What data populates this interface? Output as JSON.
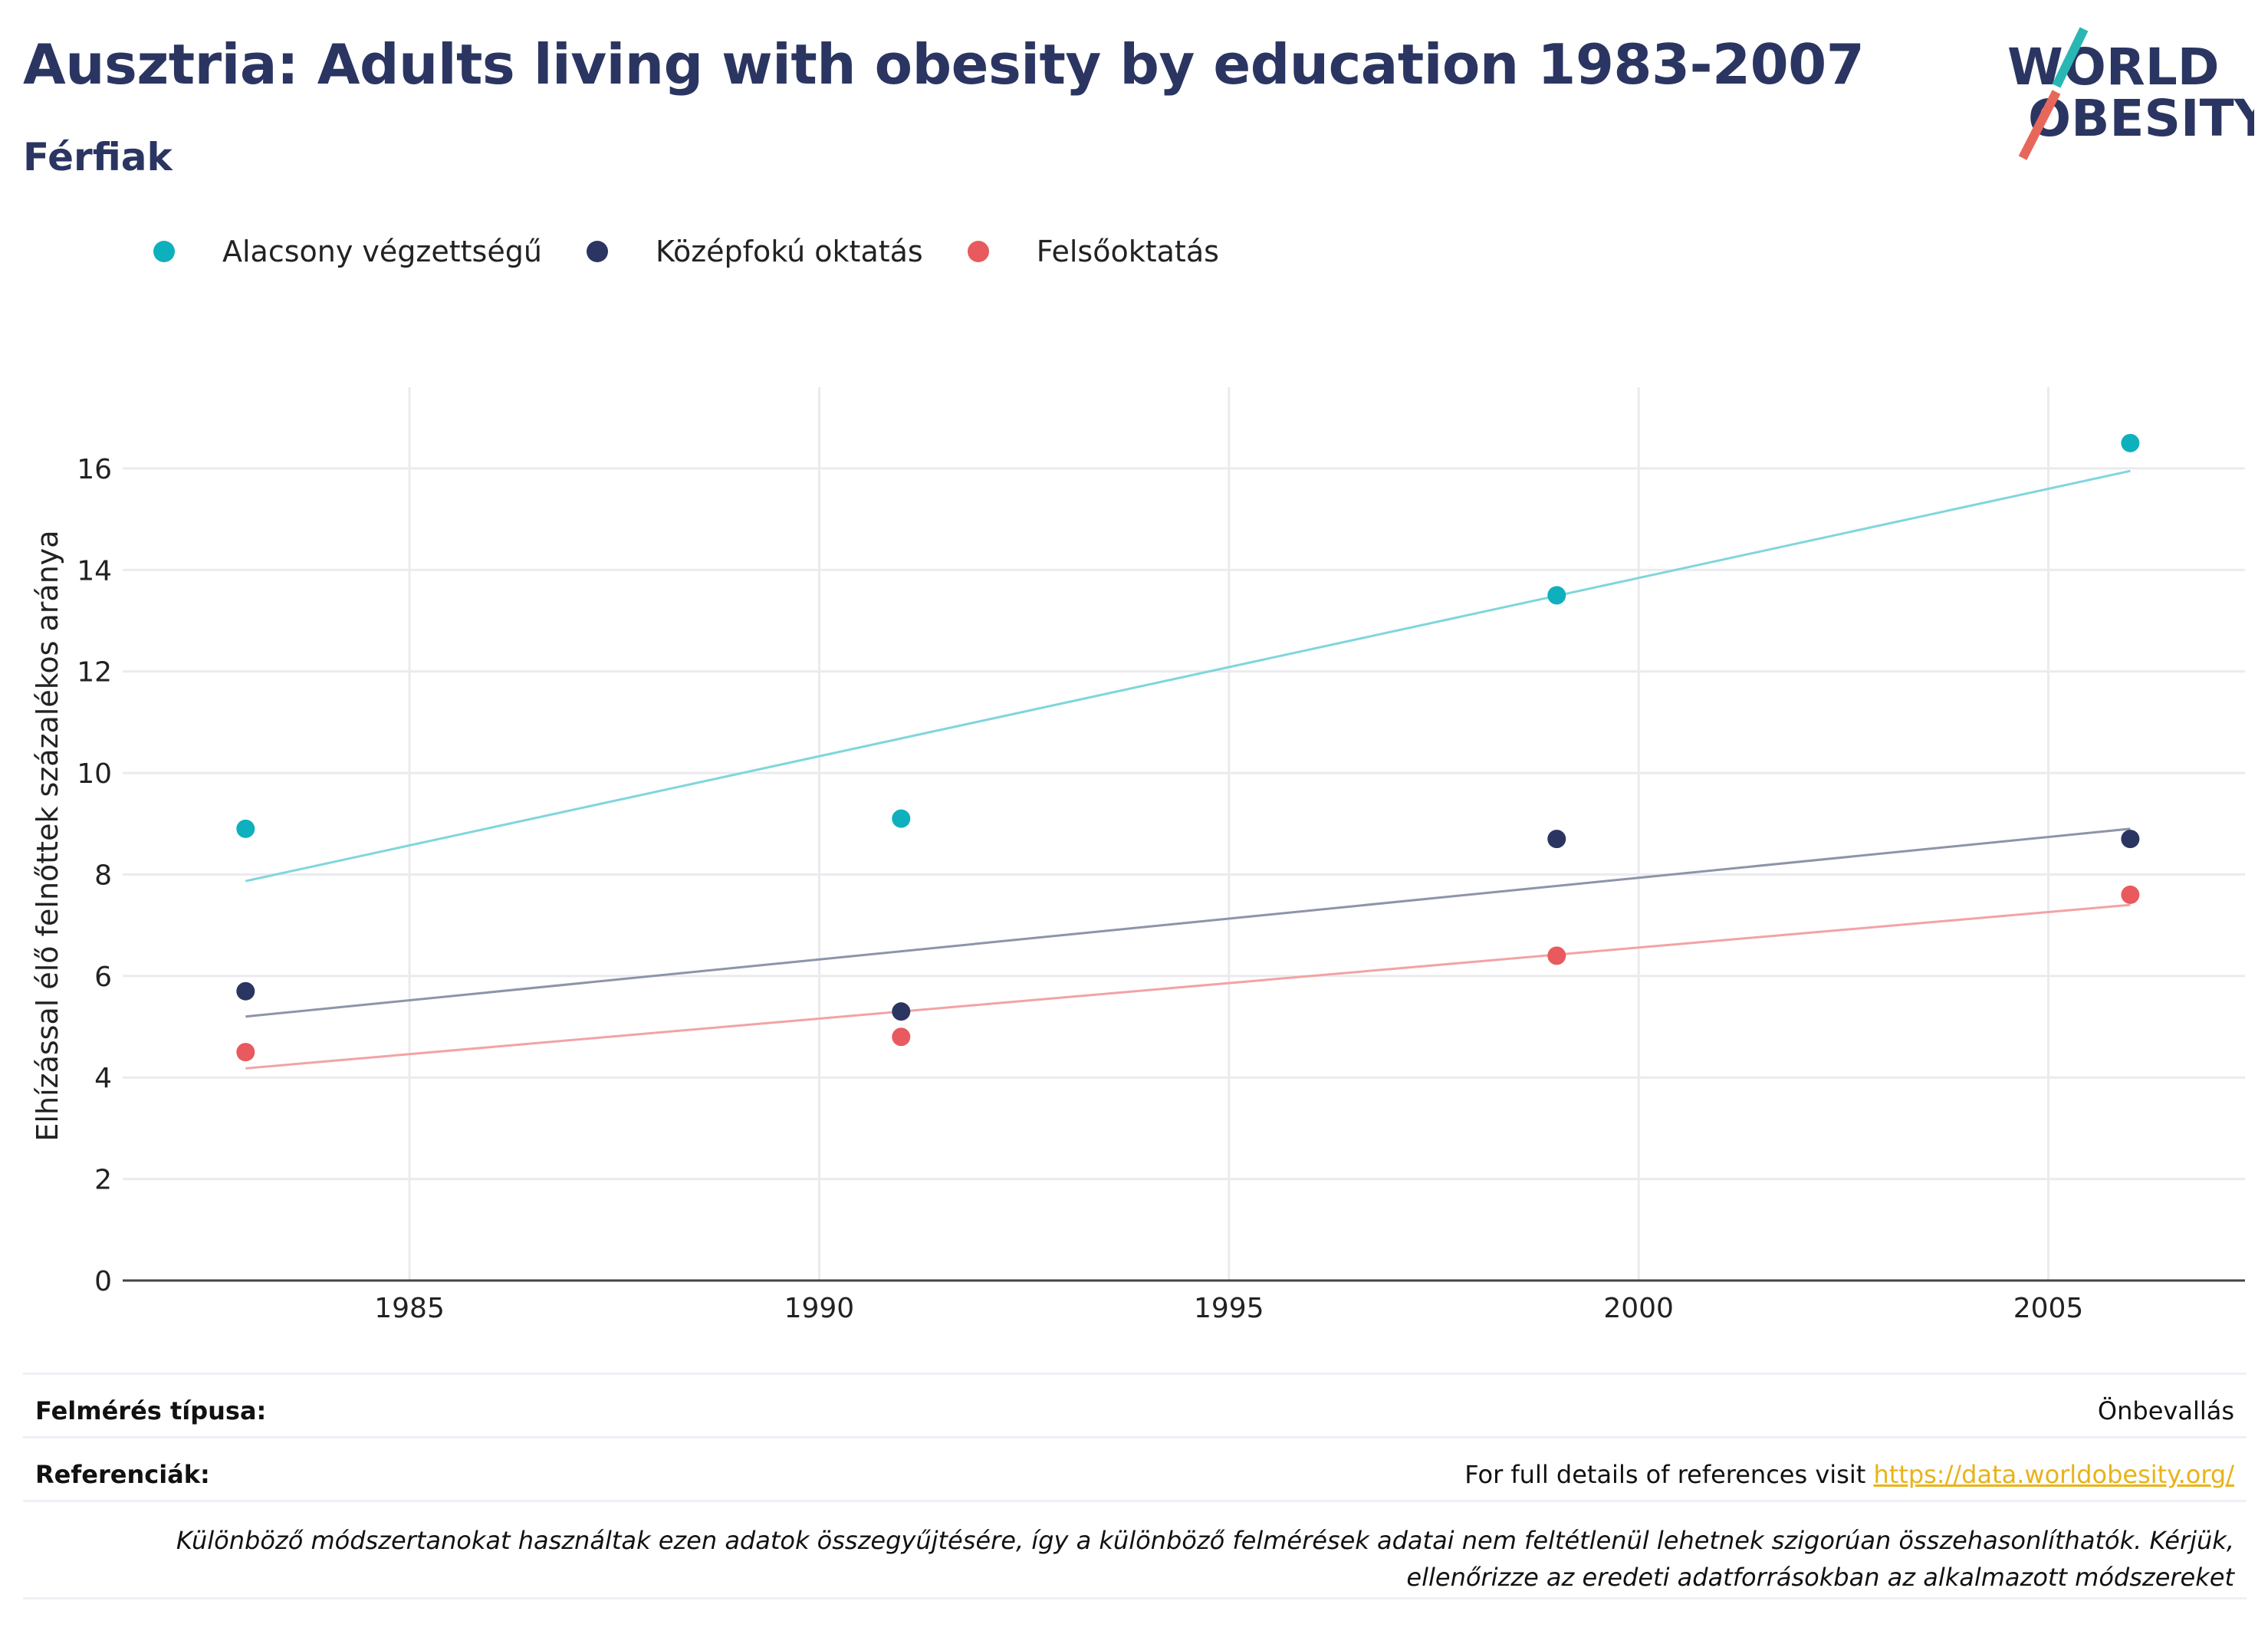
{
  "title": "Ausztria: Adults living with obesity by education 1983-2007",
  "subtitle": "Férfiak",
  "logo": {
    "line1": "WORLD",
    "line2": "OBESITY"
  },
  "legend": [
    {
      "label": "Alacsony végzettségű",
      "color": "#0fb0bd"
    },
    {
      "label": "Középfokú oktatás",
      "color": "#2b3561"
    },
    {
      "label": "Felsőoktatás",
      "color": "#e85a5e"
    }
  ],
  "chart_data": {
    "type": "scatter",
    "ylabel": "Elhízással élő felnőttek százalékos aránya",
    "xlabel": "",
    "xlim": [
      1981.5,
      2007.4
    ],
    "ylim": [
      0,
      17.6
    ],
    "xticks": [
      1985,
      1990,
      1995,
      2000,
      2005
    ],
    "yticks": [
      0,
      2,
      4,
      6,
      8,
      10,
      12,
      14,
      16
    ],
    "grid": true,
    "legend_position": "top-left",
    "series": [
      {
        "name": "Alacsony végzettségű",
        "color": "#0fb0bd",
        "trend_color": "#7fd6dc",
        "points": [
          [
            1983,
            8.9
          ],
          [
            1991,
            9.1
          ],
          [
            1999,
            13.5
          ],
          [
            2006,
            16.5
          ]
        ],
        "trend": [
          [
            1983,
            7.87
          ],
          [
            2006,
            15.95
          ]
        ]
      },
      {
        "name": "Középfokú oktatás",
        "color": "#2b3561",
        "trend_color": "#8e94a8",
        "points": [
          [
            1983,
            5.7
          ],
          [
            1991,
            5.3
          ],
          [
            1999,
            8.7
          ],
          [
            2006,
            8.7
          ]
        ],
        "trend": [
          [
            1983,
            5.2
          ],
          [
            2006,
            8.9
          ]
        ]
      },
      {
        "name": "Felsőoktatás",
        "color": "#e85a5e",
        "trend_color": "#f2a3a5",
        "points": [
          [
            1983,
            4.5
          ],
          [
            1991,
            4.8
          ],
          [
            1999,
            6.4
          ],
          [
            2006,
            7.6
          ]
        ],
        "trend": [
          [
            1983,
            4.18
          ],
          [
            2006,
            7.4
          ]
        ]
      }
    ]
  },
  "footer": {
    "survey_label": "Felmérés típusa:",
    "survey_value": "Önbevallás",
    "references_label": "Referenciák:",
    "references_text": "For full details of references visit ",
    "references_link": "https://data.worldobesity.org/",
    "note": "Különböző módszertanokat használtak ezen adatok összegyűjtésére, így a különböző felmérések adatai nem feltétlenül lehetnek szigorúan összehasonlíthatók. Kérjük, ellenőrizze az eredeti adatforrásokban az alkalmazott módszereket"
  }
}
